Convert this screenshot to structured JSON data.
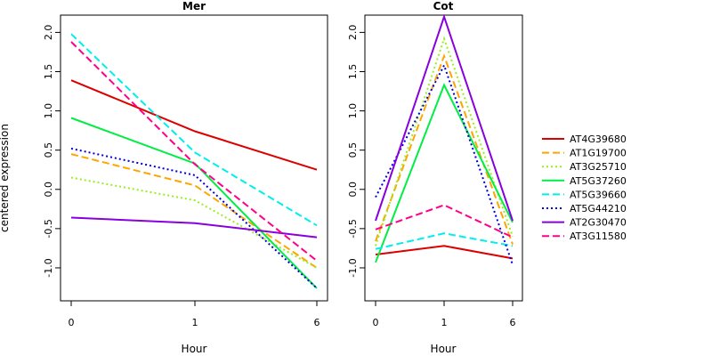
{
  "chart_data": [
    {
      "type": "line",
      "title": "Mer",
      "xlabel": "Hour",
      "ylabel": "centered expression",
      "categories": [
        "0",
        "1",
        "6"
      ],
      "yticks": [
        "-1.0",
        "-0.5",
        "0.0",
        "0.5",
        "1.0",
        "1.5",
        "2.0"
      ],
      "ylim": [
        -1.42,
        2.22
      ],
      "series": [
        {
          "name": "AT4G39680",
          "color": "#dd0000",
          "dash": "solid",
          "values": [
            1.39,
            0.74,
            0.25
          ]
        },
        {
          "name": "AT1G19700",
          "color": "#ffa500",
          "dash": "dashed",
          "values": [
            0.45,
            0.05,
            -1.0
          ]
        },
        {
          "name": "AT3G25710",
          "color": "#99ee22",
          "dash": "dotted",
          "values": [
            0.15,
            -0.14,
            -1.0
          ]
        },
        {
          "name": "AT5G37260",
          "color": "#00ee44",
          "dash": "solid",
          "values": [
            0.91,
            0.33,
            -1.26
          ]
        },
        {
          "name": "AT5G39660",
          "color": "#00eeee",
          "dash": "dashed",
          "values": [
            1.98,
            0.47,
            -0.46
          ]
        },
        {
          "name": "AT5G44210",
          "color": "#0000dd",
          "dash": "dotted",
          "values": [
            0.52,
            0.18,
            -1.26
          ]
        },
        {
          "name": "AT2G30470",
          "color": "#8800dd",
          "dash": "solid",
          "values": [
            -0.36,
            -0.43,
            -0.61
          ]
        },
        {
          "name": "AT3G11580",
          "color": "#ff0088",
          "dash": "dashed",
          "values": [
            1.88,
            0.32,
            -0.91
          ]
        }
      ]
    },
    {
      "type": "line",
      "title": "Cot",
      "xlabel": "Hour",
      "ylabel": "",
      "categories": [
        "0",
        "1",
        "6"
      ],
      "yticks": [
        "-1.0",
        "-0.5",
        "0.0",
        "0.5",
        "1.0",
        "1.5",
        "2.0"
      ],
      "ylim": [
        -1.42,
        2.22
      ],
      "series": [
        {
          "name": "AT4G39680",
          "color": "#dd0000",
          "dash": "solid",
          "values": [
            -0.83,
            -0.72,
            -0.88
          ]
        },
        {
          "name": "AT1G19700",
          "color": "#ffa500",
          "dash": "dashed",
          "values": [
            -0.66,
            1.7,
            -0.7
          ]
        },
        {
          "name": "AT3G25710",
          "color": "#99ee22",
          "dash": "dotted",
          "values": [
            -0.72,
            1.92,
            -0.6
          ]
        },
        {
          "name": "AT5G37260",
          "color": "#00ee44",
          "dash": "solid",
          "values": [
            -0.93,
            1.33,
            -0.42
          ]
        },
        {
          "name": "AT5G39660",
          "color": "#00eeee",
          "dash": "dashed",
          "values": [
            -0.76,
            -0.56,
            -0.72
          ]
        },
        {
          "name": "AT5G44210",
          "color": "#0000dd",
          "dash": "dotted",
          "values": [
            -0.1,
            1.58,
            -0.96
          ]
        },
        {
          "name": "AT2G30470",
          "color": "#8800dd",
          "dash": "solid",
          "values": [
            -0.4,
            2.2,
            -0.4
          ]
        },
        {
          "name": "AT3G11580",
          "color": "#ff0088",
          "dash": "dashed",
          "values": [
            -0.51,
            -0.2,
            -0.61
          ]
        }
      ]
    }
  ]
}
